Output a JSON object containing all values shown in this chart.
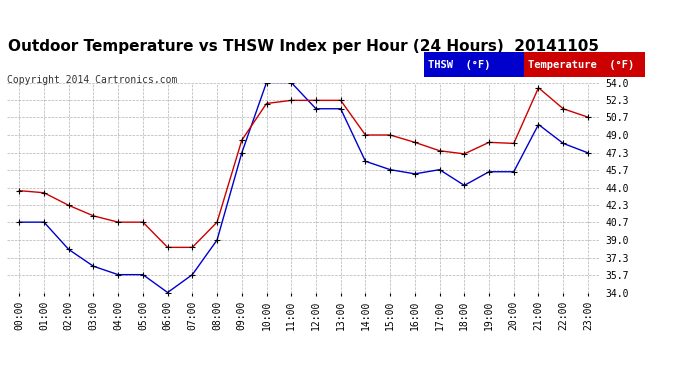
{
  "title": "Outdoor Temperature vs THSW Index per Hour (24 Hours)  20141105",
  "copyright": "Copyright 2014 Cartronics.com",
  "hours": [
    "00:00",
    "01:00",
    "02:00",
    "03:00",
    "04:00",
    "05:00",
    "06:00",
    "07:00",
    "08:00",
    "09:00",
    "10:00",
    "11:00",
    "12:00",
    "13:00",
    "14:00",
    "15:00",
    "16:00",
    "17:00",
    "18:00",
    "19:00",
    "20:00",
    "21:00",
    "22:00",
    "23:00"
  ],
  "thsw": [
    40.7,
    40.7,
    38.1,
    36.5,
    35.7,
    35.7,
    34.0,
    35.7,
    39.0,
    47.3,
    54.0,
    54.0,
    51.5,
    51.5,
    46.5,
    45.7,
    45.3,
    45.7,
    44.2,
    45.5,
    45.5,
    50.0,
    48.2,
    47.3
  ],
  "temp": [
    43.7,
    43.5,
    42.3,
    41.3,
    40.7,
    40.7,
    38.3,
    38.3,
    40.7,
    48.5,
    52.0,
    52.3,
    52.3,
    52.3,
    49.0,
    49.0,
    48.3,
    47.5,
    47.2,
    48.3,
    48.2,
    53.5,
    51.5,
    50.7
  ],
  "thsw_color": "#0000cc",
  "temp_color": "#cc0000",
  "marker_color": "#000000",
  "bg_color": "#ffffff",
  "grid_color": "#aaaaaa",
  "ylim_min": 34.0,
  "ylim_max": 54.0,
  "yticks": [
    34.0,
    35.7,
    37.3,
    39.0,
    40.7,
    42.3,
    44.0,
    45.7,
    47.3,
    49.0,
    50.7,
    52.3,
    54.0
  ],
  "legend_thsw_bg": "#0000cc",
  "legend_temp_bg": "#cc0000",
  "legend_text_color": "#ffffff",
  "title_fontsize": 11,
  "copyright_fontsize": 7,
  "tick_fontsize": 7,
  "legend_fontsize": 7.5
}
